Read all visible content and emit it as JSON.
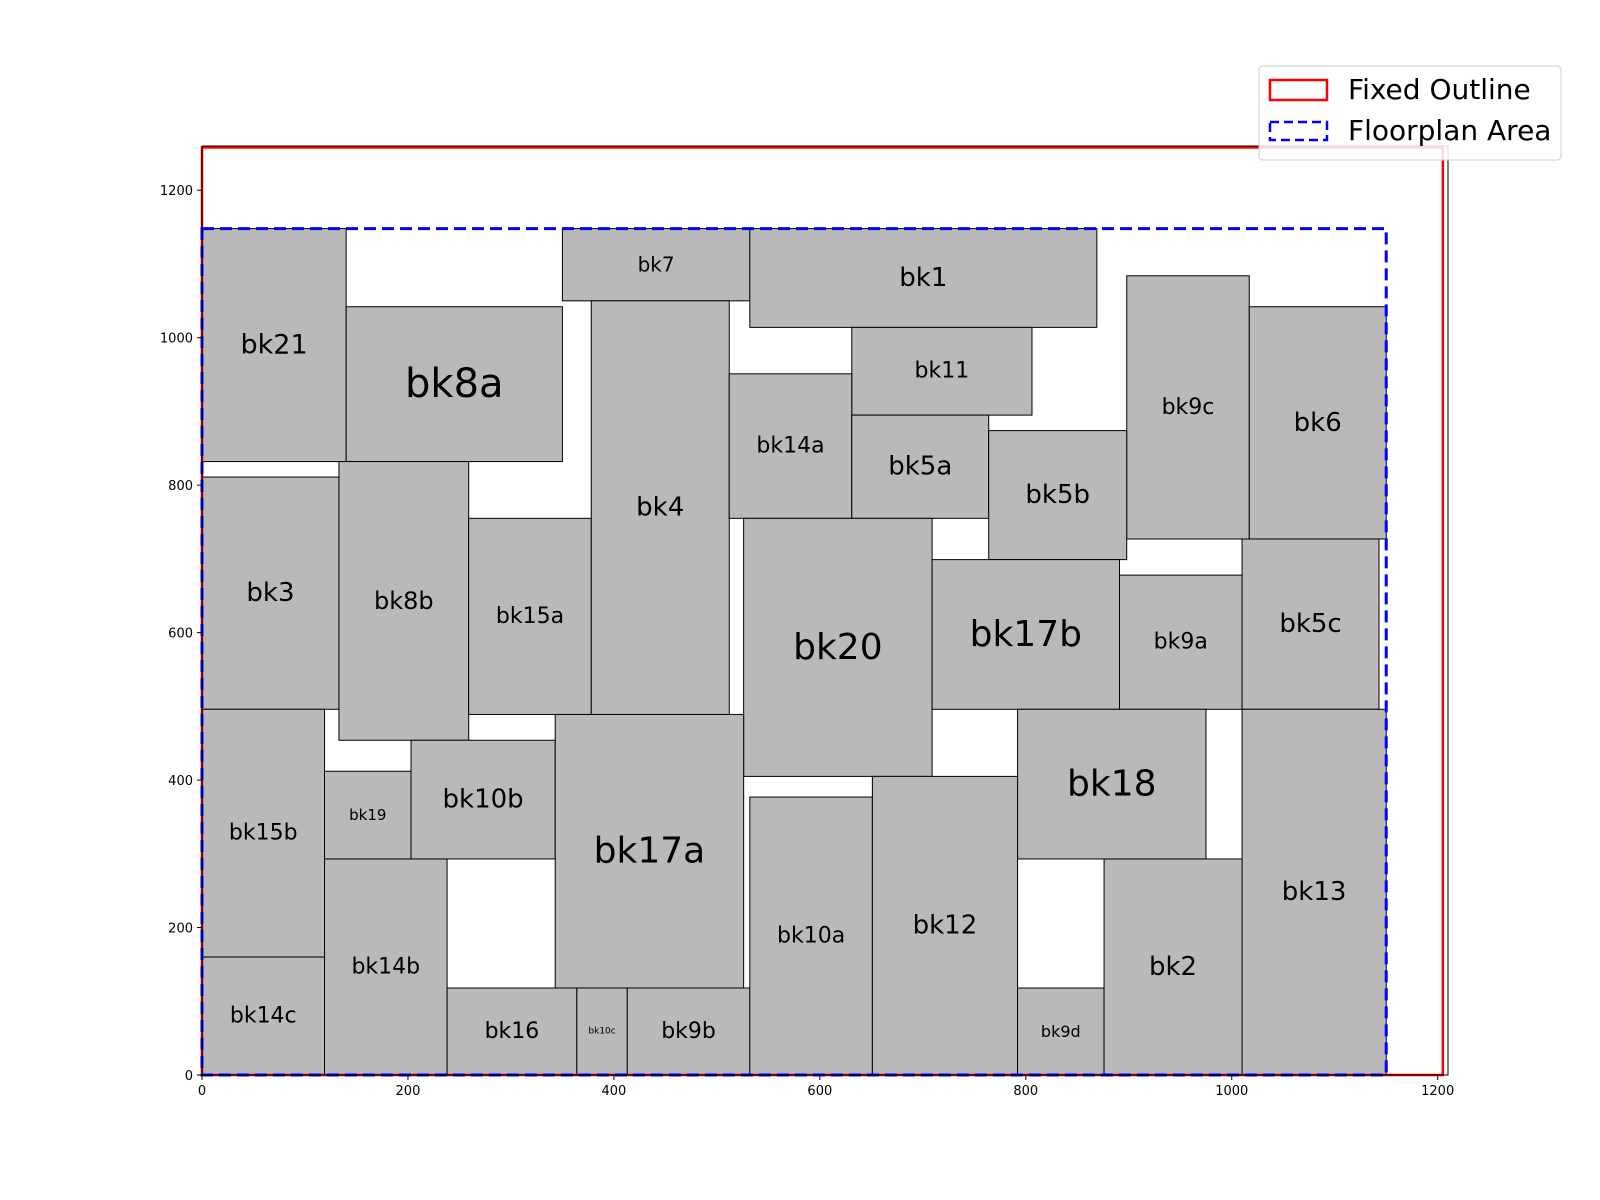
{
  "chart_data": {
    "type": "floorplan",
    "title": "",
    "xlabel": "",
    "ylabel": "",
    "xlim": [
      0,
      1210
    ],
    "ylim": [
      0,
      1260
    ],
    "x_ticks": [
      0,
      200,
      400,
      600,
      800,
      1000,
      1200
    ],
    "y_ticks": [
      0,
      200,
      400,
      600,
      800,
      1000,
      1200
    ],
    "grid": false,
    "legend_position": "top-right",
    "legend": [
      {
        "label": "Fixed Outline",
        "style": "solid",
        "color": "#ff0000"
      },
      {
        "label": "Floorplan Area",
        "style": "dashed",
        "color": "#0000ff"
      }
    ],
    "fixed_outline": {
      "x0": 0,
      "y0": 0,
      "x1": 1205,
      "y1": 1258
    },
    "floorplan_area": {
      "x0": 0,
      "y0": 0,
      "x1": 1150,
      "y1": 1148
    },
    "block_fill": "#b9b9b9",
    "blocks": [
      {
        "name": "bk21",
        "x0": 0,
        "y0": 832,
        "x1": 140,
        "y1": 1148,
        "size": 27
      },
      {
        "name": "bk8a",
        "x0": 140,
        "y0": 832,
        "x1": 350,
        "y1": 1042,
        "size": 40
      },
      {
        "name": "bk7",
        "x0": 350,
        "y0": 1050,
        "x1": 532,
        "y1": 1148,
        "size": 20
      },
      {
        "name": "bk1",
        "x0": 532,
        "y0": 1014,
        "x1": 869,
        "y1": 1148,
        "size": 26
      },
      {
        "name": "bk11",
        "x0": 631,
        "y0": 895,
        "x1": 806,
        "y1": 1014,
        "size": 22
      },
      {
        "name": "bk9c",
        "x0": 898,
        "y0": 727,
        "x1": 1017,
        "y1": 1084,
        "size": 22
      },
      {
        "name": "bk6",
        "x0": 1017,
        "y0": 727,
        "x1": 1150,
        "y1": 1042,
        "size": 26
      },
      {
        "name": "bk3",
        "x0": 0,
        "y0": 496,
        "x1": 133,
        "y1": 811,
        "size": 26
      },
      {
        "name": "bk8b",
        "x0": 133,
        "y0": 454,
        "x1": 259,
        "y1": 832,
        "size": 24
      },
      {
        "name": "bk15a",
        "x0": 259,
        "y0": 489,
        "x1": 378,
        "y1": 755,
        "size": 22
      },
      {
        "name": "bk4",
        "x0": 378,
        "y0": 489,
        "x1": 512,
        "y1": 1050,
        "size": 26
      },
      {
        "name": "bk14a",
        "x0": 512,
        "y0": 755,
        "x1": 631,
        "y1": 951,
        "size": 22
      },
      {
        "name": "bk5a",
        "x0": 631,
        "y0": 755,
        "x1": 764,
        "y1": 895,
        "size": 26
      },
      {
        "name": "bk5b",
        "x0": 764,
        "y0": 699,
        "x1": 898,
        "y1": 874,
        "size": 26
      },
      {
        "name": "bk20",
        "x0": 526,
        "y0": 405,
        "x1": 709,
        "y1": 755,
        "size": 36
      },
      {
        "name": "bk17b",
        "x0": 709,
        "y0": 496,
        "x1": 891,
        "y1": 699,
        "size": 36
      },
      {
        "name": "bk9a",
        "x0": 891,
        "y0": 496,
        "x1": 1010,
        "y1": 678,
        "size": 22
      },
      {
        "name": "bk5c",
        "x0": 1010,
        "y0": 496,
        "x1": 1143,
        "y1": 727,
        "size": 26
      },
      {
        "name": "bk15b",
        "x0": 0,
        "y0": 160,
        "x1": 119,
        "y1": 496,
        "size": 22
      },
      {
        "name": "bk19",
        "x0": 119,
        "y0": 293,
        "x1": 203,
        "y1": 412,
        "size": 15
      },
      {
        "name": "bk10b",
        "x0": 203,
        "y0": 293,
        "x1": 343,
        "y1": 454,
        "size": 26
      },
      {
        "name": "bk17a",
        "x0": 343,
        "y0": 118,
        "x1": 526,
        "y1": 489,
        "size": 36
      },
      {
        "name": "bk18",
        "x0": 792,
        "y0": 293,
        "x1": 975,
        "y1": 496,
        "size": 36
      },
      {
        "name": "bk13",
        "x0": 1010,
        "y0": 0,
        "x1": 1150,
        "y1": 496,
        "size": 26
      },
      {
        "name": "bk14c",
        "x0": 0,
        "y0": 0,
        "x1": 119,
        "y1": 160,
        "size": 22
      },
      {
        "name": "bk14b",
        "x0": 119,
        "y0": 0,
        "x1": 238,
        "y1": 293,
        "size": 22
      },
      {
        "name": "bk16",
        "x0": 238,
        "y0": 0,
        "x1": 364,
        "y1": 118,
        "size": 22
      },
      {
        "name": "bk10c",
        "x0": 364,
        "y0": 0,
        "x1": 413,
        "y1": 118,
        "size": 9
      },
      {
        "name": "bk9b",
        "x0": 413,
        "y0": 0,
        "x1": 532,
        "y1": 118,
        "size": 22
      },
      {
        "name": "bk10a",
        "x0": 532,
        "y0": 0,
        "x1": 651,
        "y1": 377,
        "size": 22
      },
      {
        "name": "bk12",
        "x0": 651,
        "y0": 0,
        "x1": 792,
        "y1": 405,
        "size": 26
      },
      {
        "name": "bk9d",
        "x0": 792,
        "y0": 0,
        "x1": 876,
        "y1": 118,
        "size": 16
      },
      {
        "name": "bk2",
        "x0": 876,
        "y0": 0,
        "x1": 1010,
        "y1": 293,
        "size": 26
      }
    ]
  }
}
